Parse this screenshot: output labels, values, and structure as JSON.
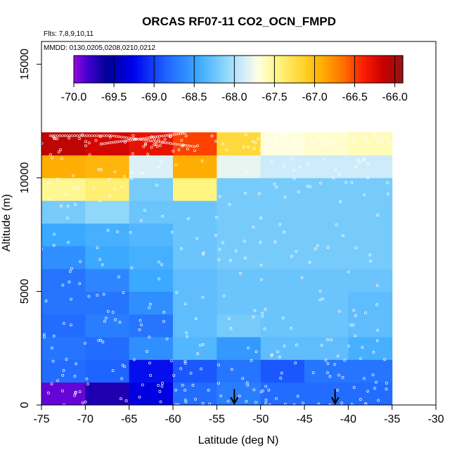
{
  "chart_data": {
    "type": "heatmap",
    "title": "ORCAS RF07-11 CO2_OCN_FMPD",
    "flights_note": "Flts: 7,8,9,10,11",
    "dates_note": "MMDD: 0130,0205,0208,0210,0212",
    "xlabel": "Latitude (deg N)",
    "ylabel": "Altitude (m)",
    "xlim": [
      -75,
      -30
    ],
    "ylim": [
      0,
      16000
    ],
    "x_ticks": [
      -75,
      -70,
      -65,
      -60,
      -55,
      -50,
      -45,
      -40,
      -35,
      -30
    ],
    "x_tick_labels": [
      "-75",
      "-70",
      "-65",
      "-60",
      "-55",
      "-50",
      "-45",
      "-40",
      "-35",
      "-30"
    ],
    "y_ticks": [
      0,
      5000,
      10000,
      15000
    ],
    "y_tick_labels": [
      "0",
      "5000",
      "10000",
      "15000"
    ],
    "colorbar": {
      "range": [
        -70.0,
        -65.9
      ],
      "ticks": [
        -70.0,
        -69.5,
        -69.0,
        -68.5,
        -68.0,
        -67.5,
        -67.0,
        -66.5,
        -66.0
      ],
      "tick_labels": [
        "-70.0",
        "-69.5",
        "-69.0",
        "-68.5",
        "-68.0",
        "-67.5",
        "-67.0",
        "-66.5",
        "-66.0"
      ]
    },
    "lat_bins": [
      -75,
      -70,
      -65,
      -60,
      -55,
      -50,
      -45,
      -40,
      -35
    ],
    "alt_bins": [
      0,
      1000,
      2000,
      3000,
      4000,
      5000,
      6000,
      7000,
      8000,
      9000,
      10000,
      11000,
      12000
    ],
    "cells": [
      [
        -69.9,
        -69.7,
        -69.3,
        -68.8,
        -68.7,
        -68.8,
        -68.8,
        -68.8
      ],
      [
        -68.8,
        -68.85,
        -69.2,
        -68.9,
        -68.75,
        -68.9,
        -68.75,
        -68.75
      ],
      [
        -68.75,
        -68.8,
        -68.6,
        -68.35,
        -68.55,
        -68.3,
        -68.3,
        -68.4
      ],
      [
        -68.8,
        -68.7,
        -68.75,
        -68.3,
        -68.2,
        -68.25,
        -68.25,
        -68.3
      ],
      [
        -68.75,
        -68.75,
        -68.6,
        -68.3,
        -68.25,
        -68.25,
        -68.25,
        -68.3
      ],
      [
        -68.75,
        -68.65,
        -68.45,
        -68.3,
        -68.25,
        -68.25,
        -68.25,
        -68.25
      ],
      [
        -68.6,
        -68.45,
        -68.4,
        -68.25,
        -68.2,
        -68.2,
        -68.2,
        -68.2
      ],
      [
        -68.45,
        -68.4,
        -68.35,
        -68.25,
        -68.2,
        -68.2,
        -68.2,
        -68.2
      ],
      [
        -68.2,
        -68.1,
        -68.25,
        -68.25,
        -68.2,
        -68.2,
        -68.2,
        -68.2
      ],
      [
        -67.5,
        -67.4,
        -68.2,
        -67.45,
        -68.2,
        -68.2,
        -68.2,
        -68.2
      ],
      [
        -66.9,
        -66.95,
        -67.85,
        -66.9,
        -67.8,
        -67.9,
        -67.9,
        -67.9
      ],
      [
        -66.1,
        -66.2,
        -66.3,
        -66.5,
        -67.2,
        -67.7,
        -67.65,
        -67.6
      ]
    ],
    "arrows_lat": [
      -53,
      -41.5
    ]
  }
}
